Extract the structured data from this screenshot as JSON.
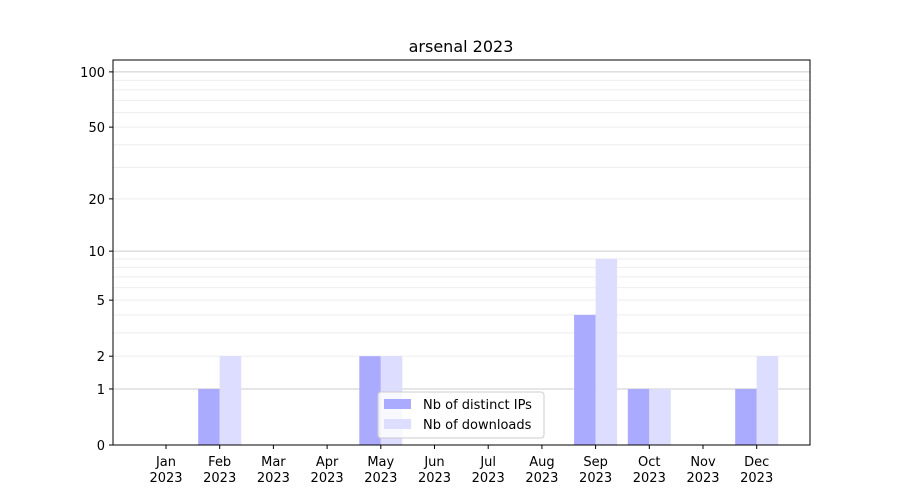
{
  "chart_data": {
    "type": "bar",
    "title": "arsenal 2023",
    "xlabel": "",
    "ylabel": "",
    "yscale": "log(1+y)",
    "ylim": [
      0,
      116
    ],
    "yticks": [
      0,
      1,
      2,
      5,
      10,
      20,
      50,
      100
    ],
    "grid": true,
    "legend_placement": "lower-center",
    "categories": [
      "Jan\n2023",
      "Feb\n2023",
      "Mar\n2023",
      "Apr\n2023",
      "May\n2023",
      "Jun\n2023",
      "Jul\n2023",
      "Aug\n2023",
      "Sep\n2023",
      "Oct\n2023",
      "Nov\n2023",
      "Dec\n2023"
    ],
    "series": [
      {
        "name": "Nb of distinct IPs",
        "color": "#aaaaff",
        "values": [
          0,
          1,
          0,
          0,
          2,
          0,
          0,
          0,
          4,
          1,
          0,
          1
        ]
      },
      {
        "name": "Nb of downloads",
        "color": "#ddddff",
        "values": [
          0,
          2,
          0,
          0,
          2,
          0,
          0,
          0,
          9,
          1,
          0,
          2
        ]
      }
    ]
  }
}
